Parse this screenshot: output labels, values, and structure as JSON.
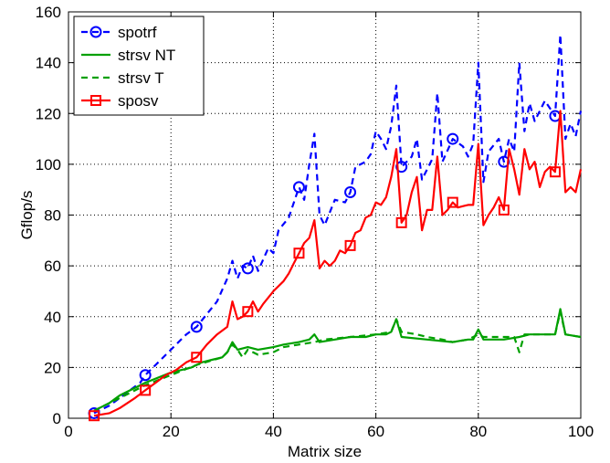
{
  "chart_data": {
    "type": "line",
    "xlabel": "Matrix size",
    "ylabel": "Gflop/s",
    "xlim": [
      0,
      100
    ],
    "ylim": [
      0,
      160
    ],
    "xticks": [
      "0",
      "20",
      "40",
      "60",
      "80",
      "100"
    ],
    "yticks": [
      "0",
      "20",
      "40",
      "60",
      "80",
      "100",
      "120",
      "140",
      "160"
    ],
    "xtick_values": [
      0,
      20,
      40,
      60,
      80,
      100
    ],
    "ytick_values": [
      0,
      20,
      40,
      60,
      80,
      100,
      120,
      140,
      160
    ],
    "grid": true,
    "legend_position": "top-left",
    "series": [
      {
        "name": "spotrf",
        "color": "#0000ff",
        "style": "dashed",
        "marker": "circle",
        "marker_x": [
          5,
          15,
          25,
          35,
          45,
          55,
          65,
          75,
          85,
          95
        ],
        "points": [
          [
            5,
            2
          ],
          [
            8,
            5
          ],
          [
            10,
            8
          ],
          [
            12,
            11
          ],
          [
            14,
            14
          ],
          [
            15,
            17
          ],
          [
            17,
            21
          ],
          [
            19,
            25
          ],
          [
            21,
            29
          ],
          [
            23,
            33
          ],
          [
            25,
            36
          ],
          [
            27,
            41
          ],
          [
            29,
            46
          ],
          [
            31,
            55
          ],
          [
            32,
            62
          ],
          [
            33,
            55
          ],
          [
            34,
            60
          ],
          [
            35,
            59
          ],
          [
            36,
            64
          ],
          [
            37,
            58
          ],
          [
            39,
            67
          ],
          [
            40,
            65
          ],
          [
            41,
            74
          ],
          [
            43,
            79
          ],
          [
            45,
            91
          ],
          [
            46,
            86
          ],
          [
            47,
            100
          ],
          [
            48,
            112
          ],
          [
            49,
            80
          ],
          [
            50,
            76
          ],
          [
            52,
            86
          ],
          [
            54,
            85
          ],
          [
            55,
            89
          ],
          [
            56,
            99
          ],
          [
            58,
            101
          ],
          [
            59,
            104
          ],
          [
            60,
            113
          ],
          [
            61,
            110
          ],
          [
            62,
            106
          ],
          [
            63,
            115
          ],
          [
            64,
            131
          ],
          [
            65,
            99
          ],
          [
            67,
            103
          ],
          [
            68,
            110
          ],
          [
            69,
            94
          ],
          [
            71,
            102
          ],
          [
            72,
            128
          ],
          [
            73,
            101
          ],
          [
            75,
            110
          ],
          [
            77,
            107
          ],
          [
            78,
            103
          ],
          [
            79,
            108
          ],
          [
            80,
            140
          ],
          [
            81,
            93
          ],
          [
            82,
            105
          ],
          [
            84,
            110
          ],
          [
            85,
            101
          ],
          [
            86,
            110
          ],
          [
            87,
            105
          ],
          [
            88,
            140
          ],
          [
            89,
            113
          ],
          [
            90,
            124
          ],
          [
            91,
            117
          ],
          [
            93,
            125
          ],
          [
            95,
            119
          ],
          [
            96,
            151
          ],
          [
            97,
            110
          ],
          [
            98,
            116
          ],
          [
            99,
            111
          ],
          [
            100,
            121
          ]
        ]
      },
      {
        "name": "strsv NT",
        "color": "#00a000",
        "style": "solid",
        "marker": "none",
        "points": [
          [
            5,
            3
          ],
          [
            8,
            6
          ],
          [
            10,
            9
          ],
          [
            15,
            14
          ],
          [
            20,
            18
          ],
          [
            24,
            20
          ],
          [
            25,
            21
          ],
          [
            26,
            22
          ],
          [
            28,
            23
          ],
          [
            30,
            24
          ],
          [
            31,
            26
          ],
          [
            32,
            30
          ],
          [
            33,
            27
          ],
          [
            35,
            28
          ],
          [
            37,
            27
          ],
          [
            40,
            28
          ],
          [
            42,
            29
          ],
          [
            45,
            30
          ],
          [
            47,
            31
          ],
          [
            48,
            33
          ],
          [
            49,
            30
          ],
          [
            52,
            31
          ],
          [
            55,
            32
          ],
          [
            58,
            32
          ],
          [
            60,
            33
          ],
          [
            62,
            33
          ],
          [
            63,
            34
          ],
          [
            64,
            39
          ],
          [
            65,
            32
          ],
          [
            70,
            31
          ],
          [
            75,
            30
          ],
          [
            78,
            31
          ],
          [
            79,
            31
          ],
          [
            80,
            35
          ],
          [
            81,
            31
          ],
          [
            83,
            31
          ],
          [
            85,
            31
          ],
          [
            88,
            32
          ],
          [
            90,
            33
          ],
          [
            94,
            33
          ],
          [
            95,
            33
          ],
          [
            96,
            43
          ],
          [
            97,
            33
          ],
          [
            100,
            32
          ]
        ]
      },
      {
        "name": "strsv T",
        "color": "#00a000",
        "style": "dashed",
        "marker": "none",
        "points": [
          [
            5,
            3
          ],
          [
            10,
            8
          ],
          [
            15,
            13
          ],
          [
            20,
            17
          ],
          [
            25,
            21
          ],
          [
            30,
            24
          ],
          [
            31,
            26
          ],
          [
            32,
            29
          ],
          [
            33,
            27
          ],
          [
            34,
            24
          ],
          [
            35,
            27
          ],
          [
            37,
            25
          ],
          [
            40,
            26
          ],
          [
            42,
            28
          ],
          [
            45,
            29
          ],
          [
            48,
            30
          ],
          [
            50,
            31
          ],
          [
            55,
            32
          ],
          [
            60,
            33
          ],
          [
            63,
            34
          ],
          [
            64,
            39
          ],
          [
            65,
            34
          ],
          [
            68,
            33
          ],
          [
            70,
            32
          ],
          [
            73,
            31
          ],
          [
            75,
            30
          ],
          [
            78,
            31
          ],
          [
            80,
            33
          ],
          [
            81,
            32
          ],
          [
            85,
            32
          ],
          [
            87,
            32
          ],
          [
            88,
            26
          ],
          [
            89,
            33
          ],
          [
            92,
            33
          ],
          [
            95,
            33
          ],
          [
            96,
            42
          ],
          [
            97,
            33
          ],
          [
            100,
            32
          ]
        ]
      },
      {
        "name": "sposv",
        "color": "#ff0000",
        "style": "solid",
        "marker": "square",
        "marker_x": [
          5,
          15,
          25,
          35,
          45,
          55,
          65,
          75,
          85,
          95
        ],
        "points": [
          [
            5,
            1
          ],
          [
            8,
            2
          ],
          [
            10,
            4
          ],
          [
            13,
            8
          ],
          [
            15,
            11
          ],
          [
            17,
            14
          ],
          [
            19,
            17
          ],
          [
            21,
            19
          ],
          [
            23,
            22
          ],
          [
            25,
            24
          ],
          [
            27,
            29
          ],
          [
            29,
            33
          ],
          [
            31,
            36
          ],
          [
            32,
            46
          ],
          [
            33,
            39
          ],
          [
            34,
            40
          ],
          [
            35,
            42
          ],
          [
            36,
            46
          ],
          [
            37,
            42
          ],
          [
            38,
            45
          ],
          [
            40,
            50
          ],
          [
            42,
            54
          ],
          [
            43,
            57
          ],
          [
            44,
            61
          ],
          [
            45,
            65
          ],
          [
            46,
            69
          ],
          [
            47,
            71
          ],
          [
            48,
            78
          ],
          [
            49,
            59
          ],
          [
            50,
            62
          ],
          [
            51,
            60
          ],
          [
            52,
            62
          ],
          [
            53,
            66
          ],
          [
            54,
            65
          ],
          [
            55,
            68
          ],
          [
            56,
            73
          ],
          [
            57,
            74
          ],
          [
            58,
            79
          ],
          [
            59,
            80
          ],
          [
            60,
            85
          ],
          [
            61,
            84
          ],
          [
            62,
            87
          ],
          [
            63,
            95
          ],
          [
            64,
            106
          ],
          [
            65,
            77
          ],
          [
            66,
            80
          ],
          [
            67,
            89
          ],
          [
            68,
            95
          ],
          [
            69,
            74
          ],
          [
            70,
            82
          ],
          [
            71,
            82
          ],
          [
            72,
            103
          ],
          [
            73,
            80
          ],
          [
            74,
            82
          ],
          [
            75,
            85
          ],
          [
            76,
            83
          ],
          [
            78,
            84
          ],
          [
            79,
            84
          ],
          [
            80,
            108
          ],
          [
            81,
            76
          ],
          [
            82,
            80
          ],
          [
            83,
            83
          ],
          [
            84,
            87
          ],
          [
            85,
            82
          ],
          [
            86,
            106
          ],
          [
            87,
            98
          ],
          [
            88,
            88
          ],
          [
            89,
            106
          ],
          [
            90,
            98
          ],
          [
            91,
            101
          ],
          [
            92,
            91
          ],
          [
            93,
            97
          ],
          [
            94,
            99
          ],
          [
            95,
            97
          ],
          [
            96,
            121
          ],
          [
            97,
            89
          ],
          [
            98,
            91
          ],
          [
            99,
            89
          ],
          [
            100,
            98
          ]
        ]
      }
    ]
  }
}
